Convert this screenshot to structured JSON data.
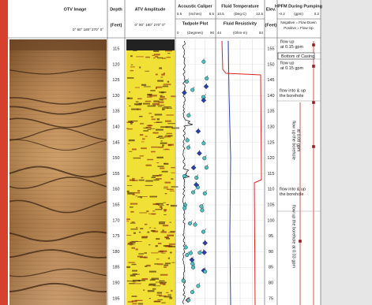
{
  "headers": {
    "otv": "OTV Image",
    "otv_scale": "0°   90°  180°  270°   0°",
    "depth": "Depth",
    "depth_unit": "(Feet)",
    "atv": "ATV Amplitude",
    "atv_scale": "0°  90°  180°  270°  0°",
    "caliper": "Acoustic Caliper",
    "caliper_min": 5.5,
    "caliper_unit": "(Inches)",
    "caliper_max": 8.5,
    "tadpole": "Tadpole Plot",
    "tadpole_min": 0,
    "tadpole_unit": "(Degrees)",
    "tadpole_max": 90,
    "temp": "Fluid Temperature",
    "temp_min": 10.5,
    "temp_unit": "(Deg C)",
    "temp_max": 12.5,
    "res": "Fluid Resistivity",
    "res_min": 44,
    "res_unit": "(Ohm-m)",
    "res_max": 84,
    "elev": "Elev.",
    "elev_unit": "(Feet)",
    "hpfm": "HPFM During Pumping",
    "hpfm_min": -0.2,
    "hpfm_unit": "(gpm)",
    "hpfm_max": 0.2,
    "note_neg": "Negative = Flow Down",
    "note_pos": "Positive = Flow Up"
  },
  "depth_labels": [
    115,
    120,
    125,
    130,
    135,
    140,
    145,
    150,
    155,
    160,
    165,
    170,
    175,
    180,
    185,
    190,
    195
  ],
  "elev_labels": [
    155,
    150,
    145,
    140,
    135,
    130,
    125,
    120,
    115,
    110,
    105,
    100,
    95,
    90,
    85,
    80,
    75
  ],
  "annotations": [
    {
      "lines": [
        "flow up",
        "at 0.15 gpm"
      ]
    },
    {
      "lines": [
        "Bottom of Casing"
      ]
    },
    {
      "lines": [
        "flow up",
        "at 0.15 gpm"
      ]
    },
    {
      "lines": [
        "flow into & up",
        "the borehole"
      ]
    },
    {
      "lines": [
        "flow up the borehole",
        "at 0.08 gpm"
      ]
    },
    {
      "lines": [
        "flow into & up",
        "the borehole"
      ]
    },
    {
      "lines": [
        "flow up the borehole at 0.03 gpm"
      ]
    }
  ]
}
